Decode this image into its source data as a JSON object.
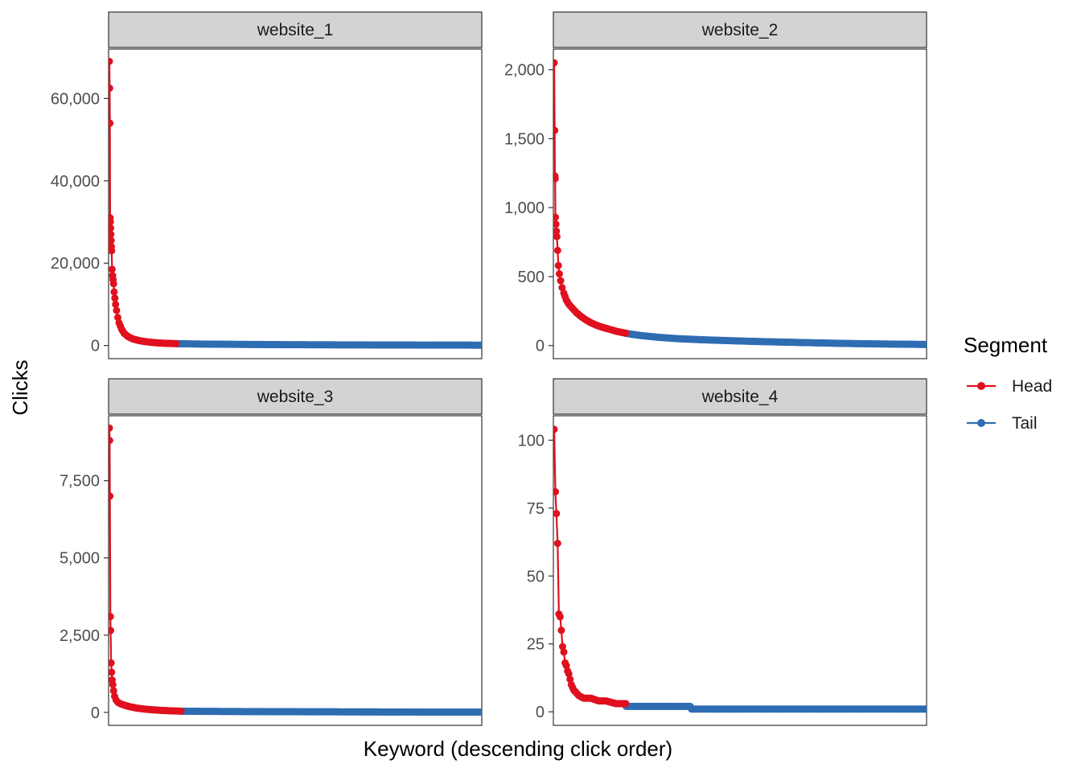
{
  "chart_data": {
    "type": "line",
    "facet_by": "website",
    "xlabel": "Keyword (descending click order)",
    "ylabel": "Clicks",
    "legend": {
      "title": "Segment",
      "placement": "right",
      "entries": [
        {
          "name": "Head",
          "color": "#e0101e"
        },
        {
          "name": "Tail",
          "color": "#2f6db2"
        }
      ]
    },
    "x_ticks_shown": false,
    "grid": false,
    "panels": [
      {
        "title": "website_1",
        "ylim": [
          -3200,
          72000
        ],
        "yticks": [
          0,
          20000,
          40000,
          60000
        ],
        "ytick_labels": [
          "0",
          "20,000",
          "40,000",
          "60,000"
        ],
        "n_keywords": 1500,
        "head_count": 270,
        "head_points": [
          [
            1,
            69000
          ],
          [
            2,
            62500
          ],
          [
            3,
            54000
          ],
          [
            4,
            31000
          ],
          [
            5,
            30000
          ],
          [
            6,
            28500
          ],
          [
            7,
            27000
          ],
          [
            8,
            25500
          ],
          [
            9,
            24000
          ],
          [
            10,
            23000
          ],
          [
            12,
            18500
          ],
          [
            14,
            17000
          ],
          [
            16,
            16000
          ],
          [
            18,
            15000
          ],
          [
            20,
            13000
          ],
          [
            23,
            11500
          ],
          [
            26,
            10000
          ],
          [
            30,
            8500
          ],
          [
            35,
            6800
          ],
          [
            40,
            5500
          ],
          [
            50,
            4000
          ],
          [
            60,
            3000
          ],
          [
            75,
            2200
          ],
          [
            95,
            1600
          ],
          [
            120,
            1200
          ],
          [
            150,
            900
          ],
          [
            190,
            650
          ],
          [
            230,
            520
          ],
          [
            270,
            450
          ]
        ],
        "tail_points": [
          [
            271,
            440
          ],
          [
            350,
            360
          ],
          [
            500,
            280
          ],
          [
            700,
            200
          ],
          [
            1000,
            140
          ],
          [
            1300,
            100
          ],
          [
            1500,
            80
          ]
        ]
      },
      {
        "title": "website_2",
        "ylim": [
          -95,
          2150
        ],
        "yticks": [
          0,
          500,
          1000,
          1500,
          2000
        ],
        "ytick_labels": [
          "0",
          "500",
          "1,000",
          "1,500",
          "2,000"
        ],
        "n_keywords": 1500,
        "head_count": 290,
        "head_points": [
          [
            1,
            2050
          ],
          [
            3,
            1560
          ],
          [
            4,
            1230
          ],
          [
            5,
            1210
          ],
          [
            6,
            930
          ],
          [
            8,
            880
          ],
          [
            10,
            830
          ],
          [
            12,
            790
          ],
          [
            15,
            690
          ],
          [
            18,
            580
          ],
          [
            22,
            520
          ],
          [
            27,
            470
          ],
          [
            33,
            420
          ],
          [
            40,
            380
          ],
          [
            50,
            330
          ],
          [
            60,
            300
          ],
          [
            75,
            270
          ],
          [
            90,
            240
          ],
          [
            110,
            210
          ],
          [
            130,
            185
          ],
          [
            150,
            165
          ],
          [
            175,
            145
          ],
          [
            200,
            130
          ],
          [
            230,
            115
          ],
          [
            260,
            100
          ],
          [
            290,
            90
          ]
        ],
        "tail_points": [
          [
            291,
            88
          ],
          [
            350,
            73
          ],
          [
            420,
            60
          ],
          [
            500,
            50
          ],
          [
            600,
            42
          ],
          [
            700,
            36
          ],
          [
            850,
            28
          ],
          [
            1000,
            22
          ],
          [
            1150,
            16
          ],
          [
            1300,
            12
          ],
          [
            1500,
            8
          ]
        ]
      },
      {
        "title": "website_3",
        "ylim": [
          -420,
          9600
        ],
        "yticks": [
          0,
          2500,
          5000,
          7500
        ],
        "ytick_labels": [
          "0",
          "2,500",
          "5,000",
          "7,500"
        ],
        "n_keywords": 1500,
        "head_count": 290,
        "head_points": [
          [
            1,
            9200
          ],
          [
            2,
            8800
          ],
          [
            3,
            7000
          ],
          [
            5,
            3100
          ],
          [
            6,
            2650
          ],
          [
            8,
            1600
          ],
          [
            10,
            1300
          ],
          [
            12,
            1050
          ],
          [
            15,
            900
          ],
          [
            18,
            700
          ],
          [
            22,
            520
          ],
          [
            28,
            400
          ],
          [
            35,
            330
          ],
          [
            45,
            280
          ],
          [
            60,
            240
          ],
          [
            80,
            190
          ],
          [
            110,
            140
          ],
          [
            150,
            100
          ],
          [
            200,
            70
          ],
          [
            250,
            50
          ],
          [
            290,
            40
          ]
        ],
        "tail_points": [
          [
            291,
            38
          ],
          [
            400,
            32
          ],
          [
            600,
            25
          ],
          [
            800,
            20
          ],
          [
            1000,
            16
          ],
          [
            1200,
            12
          ],
          [
            1500,
            8
          ]
        ]
      },
      {
        "title": "website_4",
        "ylim": [
          -5,
          109
        ],
        "yticks": [
          0,
          25,
          50,
          75,
          100
        ],
        "ytick_labels": [
          "0",
          "25",
          "50",
          "75",
          "100"
        ],
        "n_keywords": 1500,
        "head_count": 290,
        "head_points": [
          [
            1,
            104
          ],
          [
            6,
            81
          ],
          [
            10,
            73
          ],
          [
            15,
            62
          ],
          [
            20,
            36
          ],
          [
            25,
            35
          ],
          [
            30,
            30
          ],
          [
            35,
            24
          ],
          [
            40,
            22
          ],
          [
            45,
            18
          ],
          [
            50,
            17
          ],
          [
            55,
            15
          ],
          [
            60,
            14
          ],
          [
            65,
            12
          ],
          [
            70,
            10
          ],
          [
            75,
            9
          ],
          [
            80,
            8
          ],
          [
            90,
            7
          ],
          [
            100,
            6
          ],
          [
            120,
            5
          ],
          [
            150,
            5
          ],
          [
            180,
            4
          ],
          [
            210,
            4
          ],
          [
            250,
            3
          ],
          [
            290,
            3
          ]
        ],
        "tail_points": [
          [
            291,
            2
          ],
          [
            300,
            2
          ],
          [
            400,
            2
          ],
          [
            500,
            2
          ],
          [
            550,
            2
          ],
          [
            555,
            1
          ],
          [
            700,
            1
          ],
          [
            900,
            1
          ],
          [
            1100,
            1
          ],
          [
            1300,
            1
          ],
          [
            1500,
            1
          ]
        ]
      }
    ]
  }
}
